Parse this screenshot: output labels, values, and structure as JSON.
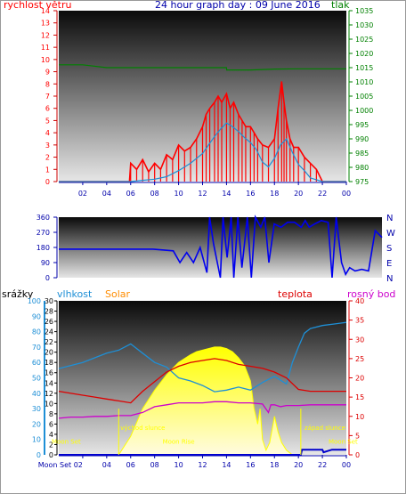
{
  "header": {
    "left": "rychlost větru",
    "title": "24 hour graph day : 09 June 2016",
    "right": "tlak"
  },
  "colors": {
    "wind": "#ff0000",
    "wind_avg": "#1e8fd6",
    "pressure": "#008000",
    "direction": "#0000ee",
    "humidity": "#1e8fd6",
    "temperature": "#dd0000",
    "dewpoint": "#cc00cc",
    "solar": "#ffff00",
    "rain": "#0000cc"
  },
  "chart_data": [
    {
      "type": "line",
      "name": "wind-pressure",
      "x_ticks": [
        "02",
        "04",
        "06",
        "08",
        "10",
        "12",
        "14",
        "16",
        "18",
        "20",
        "22",
        "00"
      ],
      "y_left": {
        "label": "rychlost větru",
        "ylim": [
          0,
          14
        ],
        "ticks": [
          0,
          1,
          2,
          3,
          4,
          5,
          6,
          7,
          8,
          9,
          10,
          11,
          12,
          13,
          14
        ]
      },
      "y_right": {
        "label": "tlak",
        "ylim": [
          975,
          1035
        ],
        "ticks": [
          975,
          980,
          985,
          990,
          995,
          1000,
          1005,
          1010,
          1015,
          1020,
          1025,
          1030,
          1035
        ]
      },
      "series": [
        {
          "key": "gust",
          "axis": "left",
          "x": [
            0,
            5.9,
            6.0,
            6.5,
            7,
            7.5,
            8,
            8.5,
            9,
            9.5,
            10,
            10.5,
            11,
            11.5,
            12,
            12.3,
            12.6,
            13,
            13.3,
            13.6,
            14,
            14.3,
            14.6,
            15,
            15.3,
            15.6,
            16,
            16.3,
            16.6,
            17,
            17.5,
            18,
            18.3,
            18.6,
            18.8,
            19,
            19.3,
            19.6,
            20,
            20.5,
            21,
            21.5,
            22,
            23,
            24
          ],
          "y": [
            0,
            0,
            1.5,
            1,
            1.8,
            0.8,
            1.5,
            1,
            2.2,
            1.8,
            3.0,
            2.5,
            2.8,
            3.5,
            4.5,
            5.5,
            6,
            6.5,
            7,
            6.5,
            7.2,
            6,
            6.5,
            5.5,
            5,
            4.5,
            4.5,
            4,
            3.5,
            3,
            2.8,
            3.5,
            6,
            8.2,
            6.5,
            5,
            3.5,
            2.8,
            2.8,
            2,
            1.5,
            1,
            0,
            0,
            0
          ]
        },
        {
          "key": "average",
          "axis": "left",
          "x": [
            0,
            6,
            7,
            8,
            9,
            10,
            11,
            12,
            12.5,
            13,
            13.5,
            14,
            14.5,
            15,
            15.5,
            16,
            16.5,
            17,
            17.5,
            18,
            18.5,
            19,
            19.5,
            20,
            20.5,
            21,
            22,
            23,
            24
          ],
          "y": [
            0,
            0,
            0.1,
            0.2,
            0.4,
            0.9,
            1.5,
            2.3,
            3.0,
            3.7,
            4.3,
            4.8,
            4.5,
            4.1,
            3.6,
            3.2,
            2.6,
            1.6,
            1.2,
            1.9,
            3.0,
            3.5,
            2.4,
            1.4,
            0.9,
            0.3,
            0,
            0,
            0
          ]
        },
        {
          "key": "pressure",
          "axis": "right",
          "x": [
            0,
            2,
            4,
            6,
            8,
            10,
            12,
            14,
            14.01,
            16,
            18,
            20,
            22,
            24
          ],
          "y": [
            1016,
            1016,
            1015,
            1015,
            1015,
            1015,
            1015,
            1015,
            1014.2,
            1014.2,
            1014.5,
            1014.6,
            1014.6,
            1014.6
          ]
        }
      ]
    },
    {
      "type": "line",
      "name": "wind-direction",
      "y_left": {
        "ylim": [
          0,
          360
        ],
        "ticks": [
          0,
          90,
          180,
          270,
          360
        ]
      },
      "y_right": {
        "labels": [
          "N",
          "W",
          "S",
          "E",
          "N"
        ]
      },
      "series": [
        {
          "key": "direction",
          "x": [
            0,
            7,
            8.5,
            9,
            9.5,
            10,
            10.5,
            11,
            11.2,
            11.5,
            12,
            12.2,
            12.5,
            12.8,
            13,
            13.3,
            13.6,
            14,
            14.3,
            14.6,
            15,
            15.3,
            15.6,
            16,
            16.5,
            17,
            17.5,
            18,
            18.3,
            18.6,
            19,
            19.5,
            20,
            20.3,
            20.6,
            21,
            21.3,
            21.6,
            22,
            22.5,
            23,
            23.5,
            24
          ],
          "y": [
            170,
            170,
            160,
            90,
            150,
            90,
            180,
            30,
            360,
            200,
            0,
            360,
            120,
            360,
            0,
            360,
            60,
            360,
            0,
            360,
            300,
            360,
            90,
            320,
            300,
            330,
            330,
            300,
            340,
            300,
            320,
            340,
            330,
            0,
            360,
            90,
            20,
            60,
            40,
            50,
            40,
            280,
            240
          ]
        }
      ]
    },
    {
      "type": "line",
      "name": "humidity-temperature-solar",
      "x_ticks": [
        "Moon Set 02",
        "04",
        "06",
        "08",
        "10",
        "12",
        "14",
        "16",
        "18",
        "20",
        "22",
        "00"
      ],
      "labels": {
        "rain": "srážky",
        "humidity": "vlhkost",
        "solar": "Solar",
        "temperature": "teplota",
        "dewpoint": "rosný bod"
      },
      "y_humidity": {
        "ylim": [
          0,
          100
        ],
        "ticks": [
          0,
          10,
          20,
          30,
          40,
          50,
          60,
          70,
          80,
          90,
          100
        ]
      },
      "y_rain": {
        "ylim": [
          0,
          30
        ],
        "ticks": [
          0,
          2,
          4,
          6,
          8,
          10,
          12,
          14,
          16,
          18,
          20,
          22,
          24,
          26,
          28,
          30
        ]
      },
      "y_temp": {
        "ylim": [
          0,
          40
        ],
        "ticks": [
          0,
          5,
          10,
          15,
          20,
          25,
          30,
          35,
          40
        ]
      },
      "annotations": {
        "moon_set": "Moon Set",
        "moon_set_right": "Moon Set",
        "moon_rise": "Moon Rise",
        "sunrise": "východ slunce",
        "sunset": "západ slunce"
      },
      "series": [
        {
          "key": "humidity",
          "x": [
            0,
            2,
            3,
            4,
            5,
            6,
            7,
            8,
            9,
            10,
            11,
            12,
            13,
            14,
            15,
            16,
            17,
            18,
            19,
            19.5,
            20,
            20.5,
            21,
            22,
            23,
            24
          ],
          "y": [
            56,
            60,
            63,
            66,
            68,
            72,
            66,
            60,
            57,
            50,
            48,
            45,
            41,
            42,
            44,
            42,
            47,
            51,
            46,
            60,
            70,
            79,
            82,
            84,
            85,
            86
          ]
        },
        {
          "key": "temperature",
          "x": [
            0,
            2,
            3,
            4,
            5,
            6,
            7,
            8,
            9,
            10,
            11,
            12,
            13,
            14,
            15,
            16,
            17,
            18,
            19,
            20,
            21,
            22,
            23,
            24
          ],
          "y": [
            16.5,
            15.5,
            15,
            14.5,
            14,
            13.5,
            16.5,
            19,
            21.5,
            23,
            24,
            24.5,
            25,
            24.5,
            23.5,
            23,
            22.5,
            21.5,
            20,
            17,
            16.5,
            16.5,
            16.5,
            16.5
          ]
        },
        {
          "key": "dewpoint",
          "x": [
            0,
            1,
            2,
            3,
            4,
            5,
            6,
            7,
            8,
            9,
            10,
            11,
            12,
            13,
            14,
            15,
            16,
            17,
            17.5,
            17.7,
            18,
            18.5,
            19,
            20,
            21,
            22,
            23,
            24
          ],
          "y": [
            9.5,
            9.8,
            9.8,
            10,
            10,
            10.2,
            10.2,
            11,
            12.5,
            13,
            13.5,
            13.5,
            13.5,
            13.8,
            13.8,
            13.5,
            13.5,
            13.2,
            11,
            13,
            13,
            12.5,
            12.8,
            12.8,
            13,
            13,
            13,
            13
          ]
        },
        {
          "key": "solar",
          "x": [
            5,
            6,
            7,
            8,
            9,
            10,
            11,
            11.5,
            12,
            12.5,
            13,
            13.5,
            14,
            14.5,
            15,
            15.5,
            16,
            16.3,
            16.6,
            16.8,
            17,
            17.3,
            17.6,
            18,
            18.3,
            18.6,
            19,
            19.5,
            20
          ],
          "y": [
            0,
            12,
            30,
            42,
            52,
            60,
            65,
            67,
            68,
            69,
            70,
            70,
            69,
            67,
            63,
            58,
            48,
            30,
            20,
            30,
            10,
            3,
            8,
            25,
            15,
            8,
            3,
            0,
            0
          ]
        },
        {
          "key": "rain",
          "x": [
            0,
            20.2,
            20.3,
            22,
            22.1,
            22.8,
            22.9,
            24
          ],
          "y": [
            0,
            0,
            1,
            1,
            0.5,
            1,
            1,
            1
          ]
        }
      ]
    }
  ]
}
